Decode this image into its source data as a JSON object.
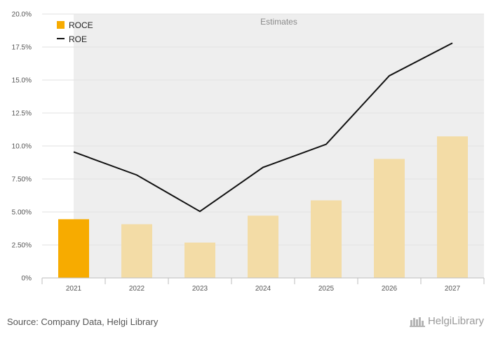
{
  "chart_data": {
    "type": "bar+line",
    "categories": [
      "2021",
      "2022",
      "2023",
      "2024",
      "2025",
      "2026",
      "2027"
    ],
    "series": [
      {
        "name": "ROCE",
        "kind": "bar",
        "values": [
          4.45,
          4.07,
          2.68,
          4.72,
          5.88,
          9.02,
          10.73
        ],
        "color_actual": "#f7ab00",
        "color_estimate": "#f3dca6"
      },
      {
        "name": "ROE",
        "kind": "line",
        "values": [
          9.55,
          7.8,
          5.04,
          8.38,
          10.13,
          15.32,
          17.8
        ],
        "color": "#111111"
      }
    ],
    "y_ticks": [
      "0%",
      "2.50%",
      "5.00%",
      "7.50%",
      "10.0%",
      "12.5%",
      "15.0%",
      "17.5%",
      "20.0%"
    ],
    "ylim": [
      0,
      20
    ],
    "estimates_label": "Estimates",
    "estimates_from": "2021",
    "legend_position": "top-left"
  },
  "footer": {
    "source": "Source: Company Data, Helgi Library",
    "logo_text": "HelgiLibrary"
  }
}
